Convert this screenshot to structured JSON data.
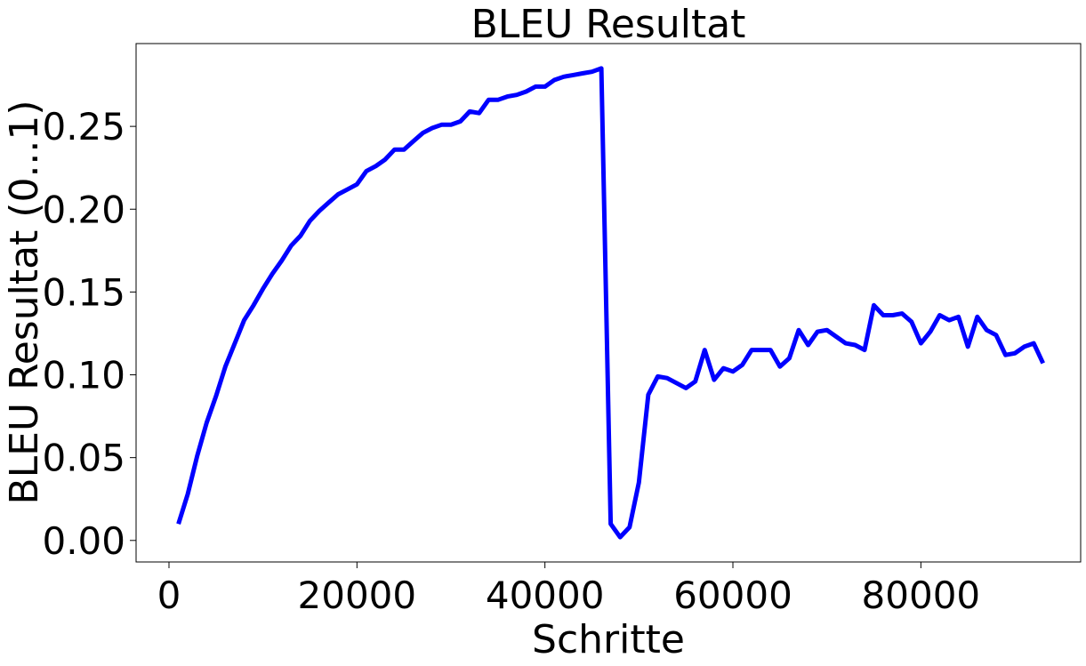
{
  "chart_data": {
    "type": "line",
    "title": "BLEU Resultat",
    "xlabel": "Schritte",
    "ylabel": "BLEU Resultat (0...1)",
    "xlim": [
      -3500,
      97000
    ],
    "ylim": [
      -0.013,
      0.3
    ],
    "xticks": [
      0,
      20000,
      40000,
      60000,
      80000
    ],
    "xtick_labels": [
      "0",
      "20000",
      "40000",
      "60000",
      "80000"
    ],
    "yticks": [
      0.0,
      0.05,
      0.1,
      0.15,
      0.2,
      0.25
    ],
    "ytick_labels": [
      "0.00",
      "0.05",
      "0.10",
      "0.15",
      "0.20",
      "0.25"
    ],
    "grid": false,
    "series": [
      {
        "color": "#0000ff",
        "x": [
          1000,
          2000,
          3000,
          4000,
          5000,
          6000,
          7000,
          8000,
          9000,
          10000,
          11000,
          12000,
          13000,
          14000,
          15000,
          16000,
          17000,
          18000,
          19000,
          20000,
          21000,
          22000,
          23000,
          24000,
          25000,
          26000,
          27000,
          28000,
          29000,
          30000,
          31000,
          32000,
          33000,
          34000,
          35000,
          36000,
          37000,
          38000,
          39000,
          40000,
          41000,
          42000,
          43000,
          44000,
          45000,
          46000,
          47000,
          48000,
          49000,
          50000,
          51000,
          52000,
          53000,
          54000,
          55000,
          56000,
          57000,
          58000,
          59000,
          60000,
          61000,
          62000,
          63000,
          64000,
          65000,
          66000,
          67000,
          68000,
          69000,
          70000,
          71000,
          72000,
          73000,
          74000,
          75000,
          76000,
          77000,
          78000,
          79000,
          80000,
          81000,
          82000,
          83000,
          84000,
          85000,
          86000,
          87000,
          88000,
          89000,
          90000,
          91000,
          92000,
          93000
        ],
        "y": [
          0.01,
          0.028,
          0.051,
          0.071,
          0.087,
          0.105,
          0.119,
          0.133,
          0.142,
          0.152,
          0.161,
          0.169,
          0.178,
          0.184,
          0.193,
          0.199,
          0.204,
          0.209,
          0.212,
          0.215,
          0.223,
          0.226,
          0.23,
          0.236,
          0.236,
          0.241,
          0.246,
          0.249,
          0.251,
          0.251,
          0.253,
          0.259,
          0.258,
          0.266,
          0.266,
          0.268,
          0.269,
          0.271,
          0.274,
          0.274,
          0.278,
          0.28,
          0.281,
          0.282,
          0.283,
          0.285,
          0.01,
          0.002,
          0.008,
          0.035,
          0.088,
          0.099,
          0.098,
          0.095,
          0.092,
          0.096,
          0.115,
          0.097,
          0.104,
          0.102,
          0.106,
          0.115,
          0.115,
          0.115,
          0.105,
          0.11,
          0.127,
          0.118,
          0.126,
          0.127,
          0.123,
          0.119,
          0.118,
          0.115,
          0.142,
          0.136,
          0.136,
          0.137,
          0.132,
          0.119,
          0.126,
          0.136,
          0.133,
          0.135,
          0.117,
          0.135,
          0.127,
          0.124,
          0.112,
          0.113,
          0.117,
          0.119,
          0.107
        ]
      }
    ]
  }
}
